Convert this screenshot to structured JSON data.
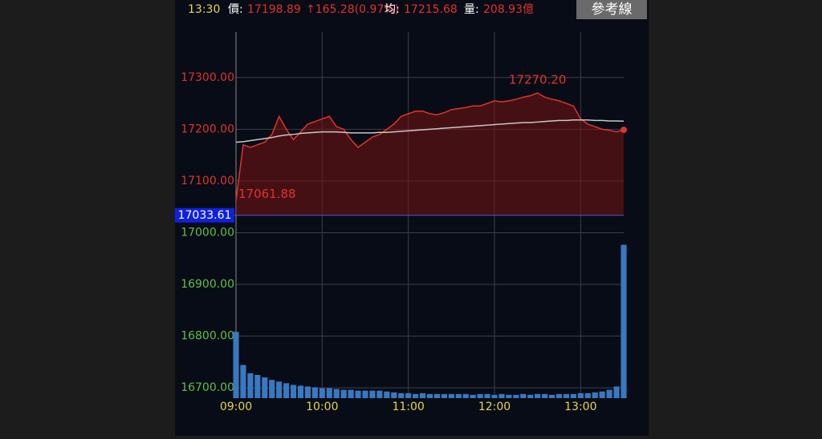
{
  "header": {
    "time": "13:30",
    "price_label": "價:",
    "price": "17198.89",
    "change": "↑165.28(0.97%)",
    "avg_label": "均:",
    "avg": "17215.68",
    "volume_label": "量:",
    "volume": "208.93億",
    "button": "參考線"
  },
  "chart_data": {
    "type": "line",
    "x": [
      "09:00",
      "09:05",
      "09:10",
      "09:15",
      "09:20",
      "09:25",
      "09:30",
      "09:35",
      "09:40",
      "09:45",
      "09:50",
      "09:55",
      "10:00",
      "10:05",
      "10:10",
      "10:15",
      "10:20",
      "10:25",
      "10:30",
      "10:35",
      "10:40",
      "10:45",
      "10:50",
      "10:55",
      "11:00",
      "11:05",
      "11:10",
      "11:15",
      "11:20",
      "11:25",
      "11:30",
      "11:35",
      "11:40",
      "11:45",
      "11:50",
      "11:55",
      "12:00",
      "12:05",
      "12:10",
      "12:15",
      "12:20",
      "12:25",
      "12:30",
      "12:35",
      "12:40",
      "12:45",
      "12:50",
      "12:55",
      "13:00",
      "13:05",
      "13:10",
      "13:15",
      "13:20",
      "13:25",
      "13:30"
    ],
    "price": {
      "color": "#e0332b",
      "values": [
        17061.88,
        17170,
        17165,
        17170,
        17175,
        17190,
        17225,
        17200,
        17180,
        17195,
        17210,
        17215,
        17220,
        17225,
        17205,
        17200,
        17180,
        17165,
        17175,
        17185,
        17190,
        17200,
        17210,
        17225,
        17230,
        17235,
        17235,
        17230,
        17228,
        17232,
        17238,
        17240,
        17242,
        17245,
        17245,
        17250,
        17255,
        17253,
        17255,
        17258,
        17262,
        17265,
        17270.2,
        17262,
        17258,
        17255,
        17250,
        17245,
        17220,
        17210,
        17205,
        17200,
        17198,
        17195,
        17198.89
      ]
    },
    "average": {
      "color": "#c8c8c8",
      "values": [
        17175,
        17176,
        17178,
        17180,
        17182,
        17184,
        17187,
        17189,
        17190,
        17192,
        17193,
        17194,
        17195,
        17195,
        17195,
        17194,
        17193,
        17193,
        17193,
        17193,
        17194,
        17194,
        17195,
        17196,
        17197,
        17198,
        17199,
        17200,
        17201,
        17202,
        17203,
        17204,
        17205,
        17206,
        17207,
        17208,
        17209,
        17210,
        17211,
        17212,
        17213,
        17213,
        17214,
        17215,
        17216,
        17217,
        17217,
        17218,
        17218,
        17218,
        17217,
        17217,
        17216,
        17216,
        17215.68
      ]
    },
    "volume": {
      "color": "#3a78c0",
      "axis": "y2",
      "values": [
        80,
        40,
        30,
        28,
        25,
        22,
        20,
        18,
        16,
        15,
        14,
        13,
        12,
        12,
        11,
        10,
        10,
        9,
        9,
        9,
        9,
        8,
        7,
        6,
        6,
        5,
        6,
        5,
        5,
        5,
        5,
        5,
        5,
        4,
        5,
        5,
        4,
        5,
        4,
        4,
        5,
        4,
        5,
        5,
        4,
        5,
        5,
        5,
        6,
        6,
        7,
        8,
        10,
        14,
        185
      ]
    },
    "ylim": [
      16680,
      17388
    ],
    "yticks": [
      {
        "value": 17300,
        "label": "17300.00"
      },
      {
        "value": 17200,
        "label": "17200.00"
      },
      {
        "value": 17100,
        "label": "17100.00"
      },
      {
        "value": 17000,
        "label": "17000.00"
      },
      {
        "value": 16900,
        "label": "16900.00"
      },
      {
        "value": 16800,
        "label": "16800.00"
      },
      {
        "value": 16700,
        "label": "16700.00"
      }
    ],
    "y2lim": [
      0,
      200
    ],
    "xticks": [
      "09:00",
      "10:00",
      "11:00",
      "12:00",
      "13:00"
    ],
    "reference": 17033.61,
    "high": {
      "value": 17270.2,
      "label": "17270.20"
    },
    "low": 17061.88,
    "up_color": "#e0332b",
    "down_color": "#5fc04a",
    "grid": true
  }
}
